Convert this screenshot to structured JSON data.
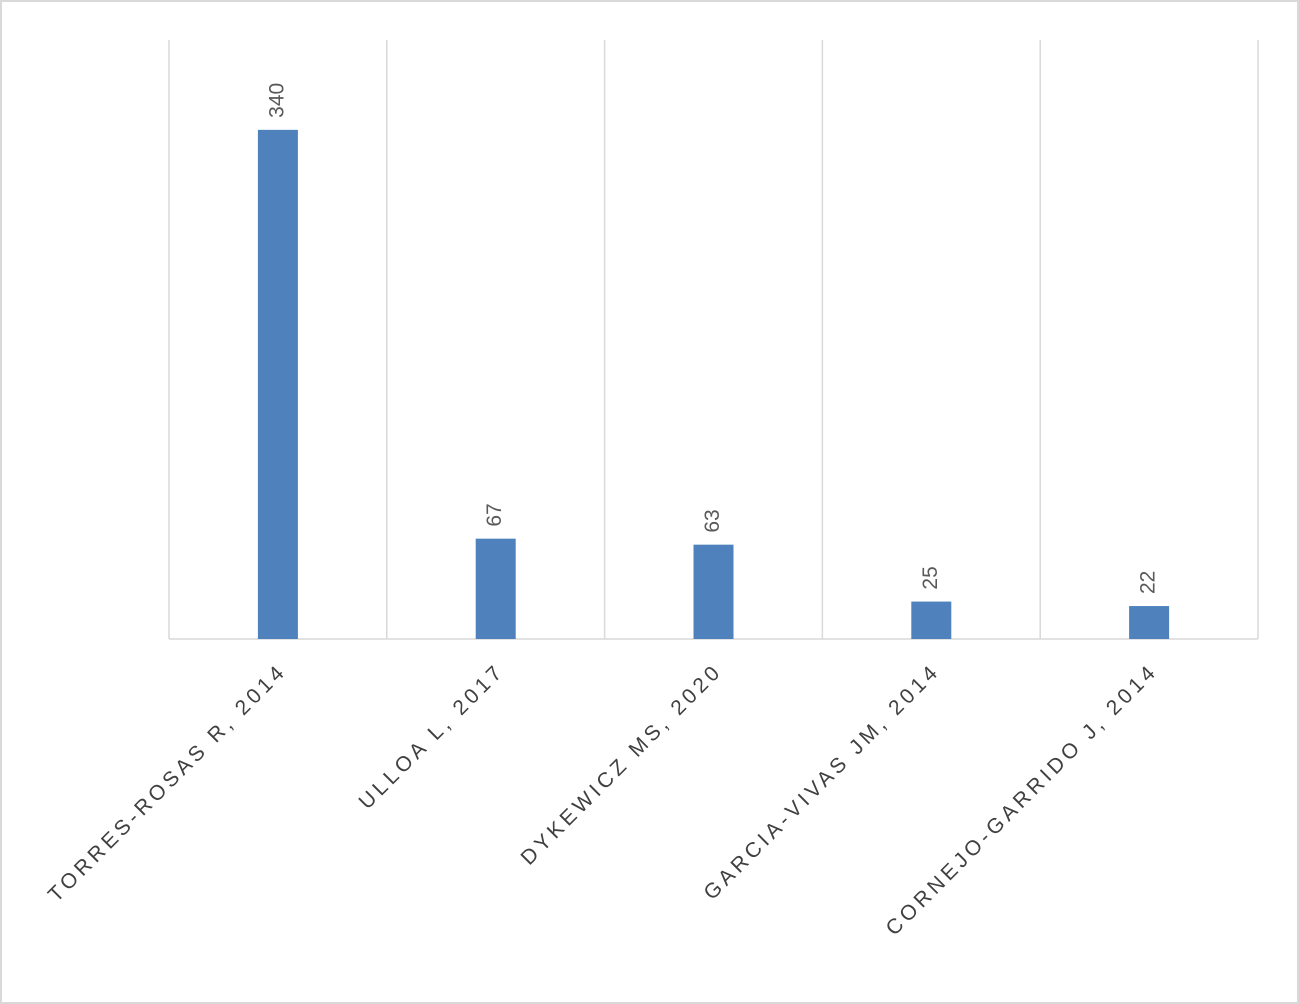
{
  "chart_data": {
    "type": "bar",
    "categories": [
      "TORRES-ROSAS R, 2014",
      "ULLOA L, 2017",
      "DYKEWICZ MS, 2020",
      "GARCIA-VIVAS JM, 2014",
      "CORNEJO-GARRIDO J, 2014"
    ],
    "values": [
      340,
      67,
      63,
      25,
      22
    ],
    "color": "#4f81bd",
    "ylim": [
      0,
      400
    ],
    "grid": true
  }
}
